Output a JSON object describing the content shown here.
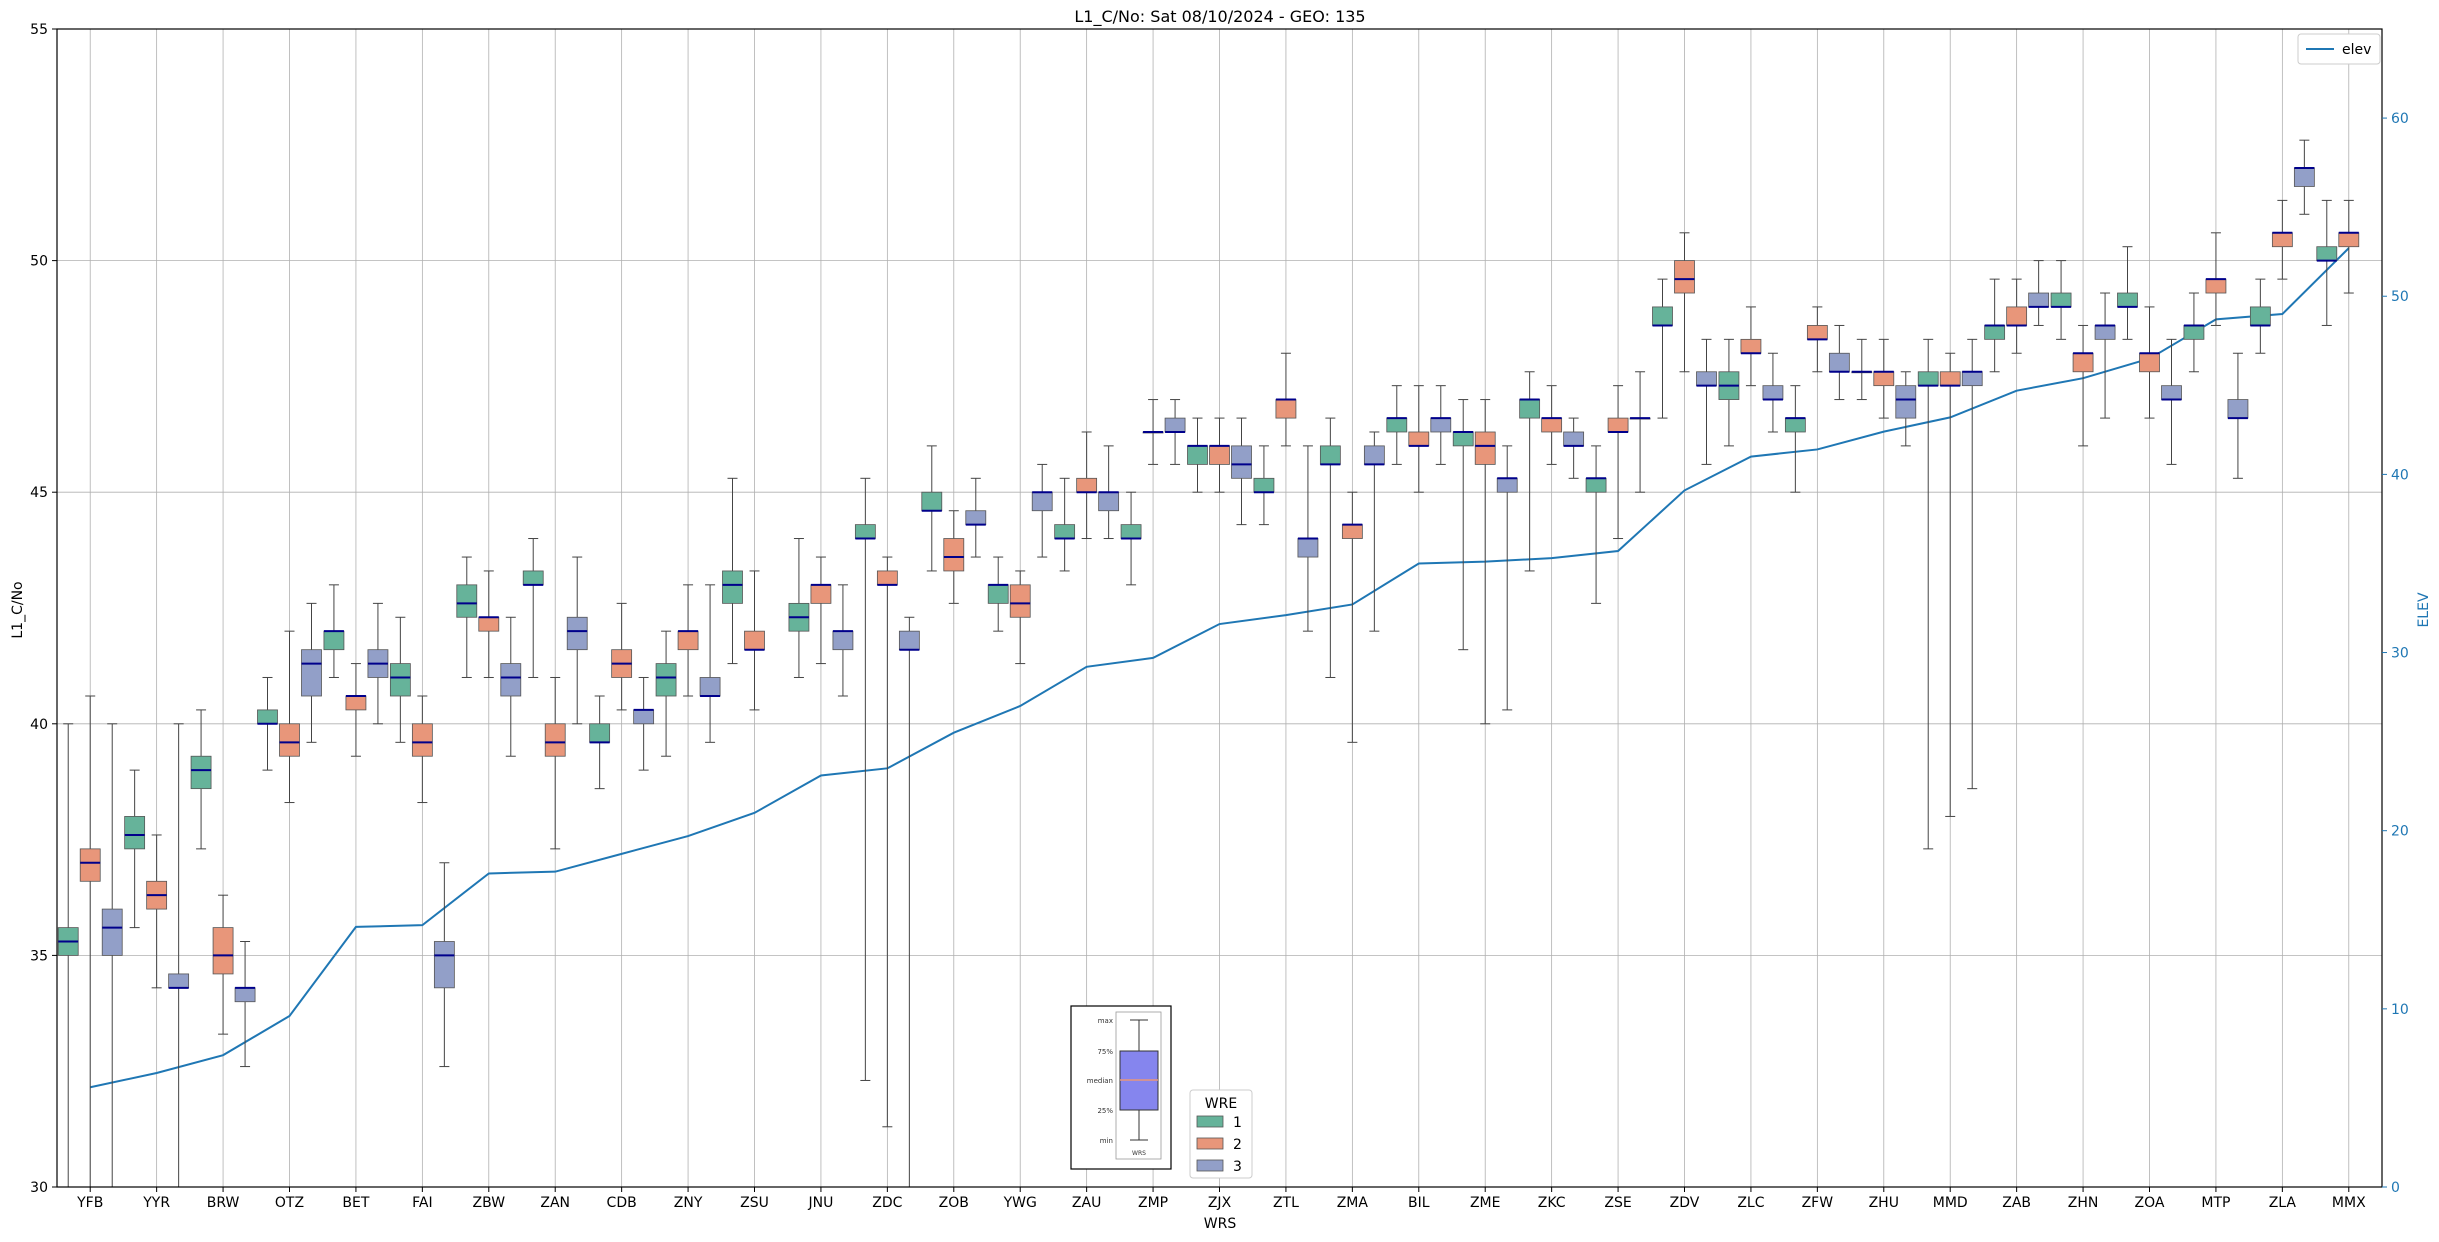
{
  "chart_data": {
    "type": "box",
    "title": "L1_C/No: Sat 08/10/2024 - GEO: 135",
    "xlabel": "WRS",
    "ylabel": "L1_C/No",
    "y2label": "ELEV",
    "ylim": [
      30,
      55
    ],
    "y2lim": [
      0,
      65
    ],
    "yticks": [
      30,
      35,
      40,
      45,
      50,
      55
    ],
    "y2ticks": [
      0,
      10,
      20,
      30,
      40,
      50,
      60
    ],
    "grid": true,
    "categories": [
      "YFB",
      "YYR",
      "BRW",
      "OTZ",
      "BET",
      "FAI",
      "ZBW",
      "ZAN",
      "CDB",
      "ZNY",
      "ZSU",
      "JNU",
      "ZDC",
      "ZOB",
      "YWG",
      "ZAU",
      "ZMP",
      "ZJX",
      "ZTL",
      "ZMA",
      "BIL",
      "ZME",
      "ZKC",
      "ZSE",
      "ZDV",
      "ZLC",
      "ZFW",
      "ZHU",
      "MMD",
      "ZAB",
      "ZHN",
      "ZOA",
      "MTP",
      "ZLA",
      "MMX"
    ],
    "series_colors": {
      "1": "#66b39a",
      "2": "#e8967a",
      "3": "#929fc8"
    },
    "median_color": "#00008b",
    "elev_color": "#1f77b4",
    "legend_wre": {
      "title": "WRE",
      "entries": [
        "1",
        "2",
        "3"
      ],
      "placement": "bottom-center"
    },
    "legend_elev": {
      "label": "elev",
      "placement": "top-right"
    },
    "box_key": {
      "labels": [
        "max",
        "75%",
        "median",
        "25%",
        "min"
      ],
      "xlabel": "WRS"
    },
    "elev": [
      5.6,
      6.4,
      7.4,
      9.6,
      14.6,
      14.7,
      17.6,
      17.7,
      18.7,
      19.7,
      21.0,
      23.1,
      23.5,
      25.5,
      27.0,
      29.2,
      29.7,
      31.6,
      32.1,
      32.7,
      35.0,
      35.1,
      35.3,
      35.7,
      39.1,
      41.0,
      41.4,
      42.4,
      43.2,
      44.7,
      45.4,
      46.5,
      48.7,
      49.0,
      52.7
    ],
    "boxes": [
      {
        "wrs": "YFB",
        "wre": 1,
        "min": 30,
        "q1": 35.0,
        "med": 35.3,
        "q3": 35.6,
        "max": 40.0
      },
      {
        "wrs": "YFB",
        "wre": 2,
        "min": 30,
        "q1": 36.6,
        "med": 37.0,
        "q3": 37.3,
        "max": 40.6
      },
      {
        "wrs": "YFB",
        "wre": 3,
        "min": 30,
        "q1": 35.0,
        "med": 35.6,
        "q3": 36.0,
        "max": 40.0
      },
      {
        "wrs": "YYR",
        "wre": 1,
        "min": 35.6,
        "q1": 37.3,
        "med": 37.6,
        "q3": 38.0,
        "max": 39.0
      },
      {
        "wrs": "YYR",
        "wre": 2,
        "min": 34.3,
        "q1": 36.0,
        "med": 36.3,
        "q3": 36.6,
        "max": 37.6
      },
      {
        "wrs": "YYR",
        "wre": 3,
        "min": 30,
        "q1": 34.3,
        "med": 34.3,
        "q3": 34.6,
        "max": 40.0
      },
      {
        "wrs": "BRW",
        "wre": 1,
        "min": 37.3,
        "q1": 38.6,
        "med": 39.0,
        "q3": 39.3,
        "max": 40.3
      },
      {
        "wrs": "BRW",
        "wre": 2,
        "min": 33.3,
        "q1": 34.6,
        "med": 35.0,
        "q3": 35.6,
        "max": 36.3
      },
      {
        "wrs": "BRW",
        "wre": 3,
        "min": 32.6,
        "q1": 34.0,
        "med": 34.3,
        "q3": 34.3,
        "max": 35.3
      },
      {
        "wrs": "OTZ",
        "wre": 1,
        "min": 39.0,
        "q1": 40.0,
        "med": 40.0,
        "q3": 40.3,
        "max": 41.0
      },
      {
        "wrs": "OTZ",
        "wre": 2,
        "min": 38.3,
        "q1": 39.3,
        "med": 39.6,
        "q3": 40.0,
        "max": 42.0
      },
      {
        "wrs": "OTZ",
        "wre": 3,
        "min": 39.6,
        "q1": 40.6,
        "med": 41.3,
        "q3": 41.6,
        "max": 42.6
      },
      {
        "wrs": "BET",
        "wre": 1,
        "min": 41.0,
        "q1": 41.6,
        "med": 42.0,
        "q3": 42.0,
        "max": 43.0
      },
      {
        "wrs": "BET",
        "wre": 2,
        "min": 39.3,
        "q1": 40.3,
        "med": 40.6,
        "q3": 40.6,
        "max": 41.3
      },
      {
        "wrs": "BET",
        "wre": 3,
        "min": 40.0,
        "q1": 41.0,
        "med": 41.3,
        "q3": 41.6,
        "max": 42.6
      },
      {
        "wrs": "FAI",
        "wre": 1,
        "min": 39.6,
        "q1": 40.6,
        "med": 41.0,
        "q3": 41.3,
        "max": 42.3
      },
      {
        "wrs": "FAI",
        "wre": 2,
        "min": 38.3,
        "q1": 39.3,
        "med": 39.6,
        "q3": 40.0,
        "max": 40.6
      },
      {
        "wrs": "FAI",
        "wre": 3,
        "min": 32.6,
        "q1": 34.3,
        "med": 35.0,
        "q3": 35.3,
        "max": 37.0
      },
      {
        "wrs": "ZBW",
        "wre": 1,
        "min": 41.0,
        "q1": 42.3,
        "med": 42.6,
        "q3": 43.0,
        "max": 43.6
      },
      {
        "wrs": "ZBW",
        "wre": 2,
        "min": 41.0,
        "q1": 42.0,
        "med": 42.3,
        "q3": 42.3,
        "max": 43.3
      },
      {
        "wrs": "ZBW",
        "wre": 3,
        "min": 39.3,
        "q1": 40.6,
        "med": 41.0,
        "q3": 41.3,
        "max": 42.3
      },
      {
        "wrs": "ZAN",
        "wre": 1,
        "min": 41.0,
        "q1": 43.0,
        "med": 43.0,
        "q3": 43.3,
        "max": 44.0
      },
      {
        "wrs": "ZAN",
        "wre": 2,
        "min": 37.3,
        "q1": 39.3,
        "med": 39.6,
        "q3": 40.0,
        "max": 41.0
      },
      {
        "wrs": "ZAN",
        "wre": 3,
        "min": 40.0,
        "q1": 41.6,
        "med": 42.0,
        "q3": 42.3,
        "max": 43.6
      },
      {
        "wrs": "CDB",
        "wre": 1,
        "min": 38.6,
        "q1": 39.6,
        "med": 39.6,
        "q3": 40.0,
        "max": 40.6
      },
      {
        "wrs": "CDB",
        "wre": 2,
        "min": 40.3,
        "q1": 41.0,
        "med": 41.3,
        "q3": 41.6,
        "max": 42.6
      },
      {
        "wrs": "CDB",
        "wre": 3,
        "min": 39.0,
        "q1": 40.0,
        "med": 40.3,
        "q3": 40.3,
        "max": 41.0
      },
      {
        "wrs": "ZNY",
        "wre": 1,
        "min": 39.3,
        "q1": 40.6,
        "med": 41.0,
        "q3": 41.3,
        "max": 42.0
      },
      {
        "wrs": "ZNY",
        "wre": 2,
        "min": 40.6,
        "q1": 41.6,
        "med": 42.0,
        "q3": 42.0,
        "max": 43.0
      },
      {
        "wrs": "ZNY",
        "wre": 3,
        "min": 39.6,
        "q1": 40.6,
        "med": 40.6,
        "q3": 41.0,
        "max": 43.0
      },
      {
        "wrs": "ZSU",
        "wre": 1,
        "min": 41.3,
        "q1": 42.6,
        "med": 43.0,
        "q3": 43.3,
        "max": 45.3
      },
      {
        "wrs": "ZSU",
        "wre": 2,
        "min": 40.3,
        "q1": 41.6,
        "med": 41.6,
        "q3": 42.0,
        "max": 43.3
      },
      {
        "wrs": "JNU",
        "wre": 1,
        "min": 41.0,
        "q1": 42.0,
        "med": 42.3,
        "q3": 42.6,
        "max": 44.0
      },
      {
        "wrs": "JNU",
        "wre": 2,
        "min": 41.3,
        "q1": 42.6,
        "med": 43.0,
        "q3": 43.0,
        "max": 43.6
      },
      {
        "wrs": "JNU",
        "wre": 3,
        "min": 40.6,
        "q1": 41.6,
        "med": 42.0,
        "q3": 42.0,
        "max": 43.0
      },
      {
        "wrs": "ZDC",
        "wre": 1,
        "min": 32.3,
        "q1": 44.0,
        "med": 44.0,
        "q3": 44.3,
        "max": 45.3
      },
      {
        "wrs": "ZDC",
        "wre": 2,
        "min": 31.3,
        "q1": 43.0,
        "med": 43.0,
        "q3": 43.3,
        "max": 43.6
      },
      {
        "wrs": "ZDC",
        "wre": 3,
        "min": 30,
        "q1": 41.6,
        "med": 41.6,
        "q3": 42.0,
        "max": 42.3
      },
      {
        "wrs": "ZOB",
        "wre": 1,
        "min": 43.3,
        "q1": 44.6,
        "med": 44.6,
        "q3": 45.0,
        "max": 46.0
      },
      {
        "wrs": "ZOB",
        "wre": 2,
        "min": 42.6,
        "q1": 43.3,
        "med": 43.6,
        "q3": 44.0,
        "max": 44.6
      },
      {
        "wrs": "ZOB",
        "wre": 3,
        "min": 43.6,
        "q1": 44.3,
        "med": 44.3,
        "q3": 44.6,
        "max": 45.3
      },
      {
        "wrs": "YWG",
        "wre": 1,
        "min": 42.0,
        "q1": 42.6,
        "med": 43.0,
        "q3": 43.0,
        "max": 43.6
      },
      {
        "wrs": "YWG",
        "wre": 2,
        "min": 41.3,
        "q1": 42.3,
        "med": 42.6,
        "q3": 43.0,
        "max": 43.3
      },
      {
        "wrs": "YWG",
        "wre": 3,
        "min": 43.6,
        "q1": 44.6,
        "med": 45.0,
        "q3": 45.0,
        "max": 45.6
      },
      {
        "wrs": "ZAU",
        "wre": 1,
        "min": 43.3,
        "q1": 44.0,
        "med": 44.0,
        "q3": 44.3,
        "max": 45.3
      },
      {
        "wrs": "ZAU",
        "wre": 2,
        "min": 44.0,
        "q1": 45.0,
        "med": 45.0,
        "q3": 45.3,
        "max": 46.3
      },
      {
        "wrs": "ZAU",
        "wre": 3,
        "min": 44.0,
        "q1": 44.6,
        "med": 45.0,
        "q3": 45.0,
        "max": 46.0
      },
      {
        "wrs": "ZMP",
        "wre": 1,
        "min": 43.0,
        "q1": 44.0,
        "med": 44.0,
        "q3": 44.3,
        "max": 45.0
      },
      {
        "wrs": "ZMP",
        "wre": 2,
        "min": 45.6,
        "q1": 46.3,
        "med": 46.3,
        "q3": 46.3,
        "max": 47.0
      },
      {
        "wrs": "ZMP",
        "wre": 3,
        "min": 45.6,
        "q1": 46.3,
        "med": 46.3,
        "q3": 46.6,
        "max": 47.0
      },
      {
        "wrs": "ZJX",
        "wre": 1,
        "min": 45.0,
        "q1": 45.6,
        "med": 46.0,
        "q3": 46.0,
        "max": 46.6
      },
      {
        "wrs": "ZJX",
        "wre": 2,
        "min": 45.0,
        "q1": 45.6,
        "med": 46.0,
        "q3": 46.0,
        "max": 46.6
      },
      {
        "wrs": "ZJX",
        "wre": 3,
        "min": 44.3,
        "q1": 45.3,
        "med": 45.6,
        "q3": 46.0,
        "max": 46.6
      },
      {
        "wrs": "ZTL",
        "wre": 1,
        "min": 44.3,
        "q1": 45.0,
        "med": 45.0,
        "q3": 45.3,
        "max": 46.0
      },
      {
        "wrs": "ZTL",
        "wre": 2,
        "min": 46.0,
        "q1": 46.6,
        "med": 47.0,
        "q3": 47.0,
        "max": 48.0
      },
      {
        "wrs": "ZTL",
        "wre": 3,
        "min": 42.0,
        "q1": 43.6,
        "med": 44.0,
        "q3": 44.0,
        "max": 46.0
      },
      {
        "wrs": "ZMA",
        "wre": 1,
        "min": 41.0,
        "q1": 45.6,
        "med": 45.6,
        "q3": 46.0,
        "max": 46.6
      },
      {
        "wrs": "ZMA",
        "wre": 2,
        "min": 39.6,
        "q1": 44.0,
        "med": 44.3,
        "q3": 44.3,
        "max": 45.0
      },
      {
        "wrs": "ZMA",
        "wre": 3,
        "min": 42.0,
        "q1": 45.6,
        "med": 45.6,
        "q3": 46.0,
        "max": 46.3
      },
      {
        "wrs": "BIL",
        "wre": 1,
        "min": 45.6,
        "q1": 46.3,
        "med": 46.6,
        "q3": 46.6,
        "max": 47.3
      },
      {
        "wrs": "BIL",
        "wre": 2,
        "min": 45.0,
        "q1": 46.0,
        "med": 46.0,
        "q3": 46.3,
        "max": 47.3
      },
      {
        "wrs": "BIL",
        "wre": 3,
        "min": 45.6,
        "q1": 46.3,
        "med": 46.6,
        "q3": 46.6,
        "max": 47.3
      },
      {
        "wrs": "ZME",
        "wre": 1,
        "min": 41.6,
        "q1": 46.0,
        "med": 46.3,
        "q3": 46.3,
        "max": 47.0
      },
      {
        "wrs": "ZME",
        "wre": 2,
        "min": 40.0,
        "q1": 45.6,
        "med": 46.0,
        "q3": 46.3,
        "max": 47.0
      },
      {
        "wrs": "ZME",
        "wre": 3,
        "min": 40.3,
        "q1": 45.0,
        "med": 45.3,
        "q3": 45.3,
        "max": 46.0
      },
      {
        "wrs": "ZKC",
        "wre": 1,
        "min": 43.3,
        "q1": 46.6,
        "med": 47.0,
        "q3": 47.0,
        "max": 47.6
      },
      {
        "wrs": "ZKC",
        "wre": 2,
        "min": 45.6,
        "q1": 46.3,
        "med": 46.6,
        "q3": 46.6,
        "max": 47.3
      },
      {
        "wrs": "ZKC",
        "wre": 3,
        "min": 45.3,
        "q1": 46.0,
        "med": 46.0,
        "q3": 46.3,
        "max": 46.6
      },
      {
        "wrs": "ZSE",
        "wre": 1,
        "min": 42.6,
        "q1": 45.0,
        "med": 45.3,
        "q3": 45.3,
        "max": 46.0
      },
      {
        "wrs": "ZSE",
        "wre": 2,
        "min": 44.0,
        "q1": 46.3,
        "med": 46.3,
        "q3": 46.6,
        "max": 47.3
      },
      {
        "wrs": "ZSE",
        "wre": 3,
        "min": 45.0,
        "q1": 46.6,
        "med": 46.6,
        "q3": 46.6,
        "max": 47.6
      },
      {
        "wrs": "ZDV",
        "wre": 1,
        "min": 46.6,
        "q1": 48.6,
        "med": 48.6,
        "q3": 49.0,
        "max": 49.6
      },
      {
        "wrs": "ZDV",
        "wre": 2,
        "min": 47.6,
        "q1": 49.3,
        "med": 49.6,
        "q3": 50.0,
        "max": 50.6
      },
      {
        "wrs": "ZDV",
        "wre": 3,
        "min": 45.6,
        "q1": 47.3,
        "med": 47.3,
        "q3": 47.6,
        "max": 48.3
      },
      {
        "wrs": "ZLC",
        "wre": 1,
        "min": 46.0,
        "q1": 47.0,
        "med": 47.3,
        "q3": 47.6,
        "max": 48.3
      },
      {
        "wrs": "ZLC",
        "wre": 2,
        "min": 47.3,
        "q1": 48.0,
        "med": 48.0,
        "q3": 48.3,
        "max": 49.0
      },
      {
        "wrs": "ZLC",
        "wre": 3,
        "min": 46.3,
        "q1": 47.0,
        "med": 47.0,
        "q3": 47.3,
        "max": 48.0
      },
      {
        "wrs": "ZFW",
        "wre": 1,
        "min": 45.0,
        "q1": 46.3,
        "med": 46.6,
        "q3": 46.6,
        "max": 47.3
      },
      {
        "wrs": "ZFW",
        "wre": 2,
        "min": 47.6,
        "q1": 48.3,
        "med": 48.3,
        "q3": 48.6,
        "max": 49.0
      },
      {
        "wrs": "ZFW",
        "wre": 3,
        "min": 47.0,
        "q1": 47.6,
        "med": 47.6,
        "q3": 48.0,
        "max": 48.6
      },
      {
        "wrs": "ZHU",
        "wre": 1,
        "min": 47.0,
        "q1": 47.6,
        "med": 47.6,
        "q3": 47.6,
        "max": 48.3
      },
      {
        "wrs": "ZHU",
        "wre": 2,
        "min": 46.6,
        "q1": 47.3,
        "med": 47.6,
        "q3": 47.6,
        "max": 48.3
      },
      {
        "wrs": "ZHU",
        "wre": 3,
        "min": 46.0,
        "q1": 46.6,
        "med": 47.0,
        "q3": 47.3,
        "max": 47.6
      },
      {
        "wrs": "MMD",
        "wre": 1,
        "min": 37.3,
        "q1": 47.3,
        "med": 47.3,
        "q3": 47.6,
        "max": 48.3
      },
      {
        "wrs": "MMD",
        "wre": 2,
        "min": 38.0,
        "q1": 47.3,
        "med": 47.3,
        "q3": 47.6,
        "max": 48.0
      },
      {
        "wrs": "MMD",
        "wre": 3,
        "min": 38.6,
        "q1": 47.3,
        "med": 47.6,
        "q3": 47.6,
        "max": 48.3
      },
      {
        "wrs": "ZAB",
        "wre": 1,
        "min": 47.6,
        "q1": 48.3,
        "med": 48.6,
        "q3": 48.6,
        "max": 49.6
      },
      {
        "wrs": "ZAB",
        "wre": 2,
        "min": 48.0,
        "q1": 48.6,
        "med": 48.6,
        "q3": 49.0,
        "max": 49.6
      },
      {
        "wrs": "ZAB",
        "wre": 3,
        "min": 48.6,
        "q1": 49.0,
        "med": 49.0,
        "q3": 49.3,
        "max": 50.0
      },
      {
        "wrs": "ZHN",
        "wre": 1,
        "min": 48.3,
        "q1": 49.0,
        "med": 49.0,
        "q3": 49.3,
        "max": 50.0
      },
      {
        "wrs": "ZHN",
        "wre": 2,
        "min": 46.0,
        "q1": 47.6,
        "med": 48.0,
        "q3": 48.0,
        "max": 48.6
      },
      {
        "wrs": "ZHN",
        "wre": 3,
        "min": 46.6,
        "q1": 48.3,
        "med": 48.6,
        "q3": 48.6,
        "max": 49.3
      },
      {
        "wrs": "ZOA",
        "wre": 1,
        "min": 48.3,
        "q1": 49.0,
        "med": 49.0,
        "q3": 49.3,
        "max": 50.3
      },
      {
        "wrs": "ZOA",
        "wre": 2,
        "min": 46.6,
        "q1": 47.6,
        "med": 48.0,
        "q3": 48.0,
        "max": 49.0
      },
      {
        "wrs": "ZOA",
        "wre": 3,
        "min": 45.6,
        "q1": 47.0,
        "med": 47.0,
        "q3": 47.3,
        "max": 48.3
      },
      {
        "wrs": "MTP",
        "wre": 1,
        "min": 47.6,
        "q1": 48.3,
        "med": 48.6,
        "q3": 48.6,
        "max": 49.3
      },
      {
        "wrs": "MTP",
        "wre": 2,
        "min": 48.6,
        "q1": 49.3,
        "med": 49.6,
        "q3": 49.6,
        "max": 50.6
      },
      {
        "wrs": "MTP",
        "wre": 3,
        "min": 45.3,
        "q1": 46.6,
        "med": 46.6,
        "q3": 47.0,
        "max": 48.0
      },
      {
        "wrs": "ZLA",
        "wre": 1,
        "min": 48.0,
        "q1": 48.6,
        "med": 48.6,
        "q3": 49.0,
        "max": 49.6
      },
      {
        "wrs": "ZLA",
        "wre": 2,
        "min": 49.6,
        "q1": 50.3,
        "med": 50.6,
        "q3": 50.6,
        "max": 51.3
      },
      {
        "wrs": "ZLA",
        "wre": 3,
        "min": 51.0,
        "q1": 51.6,
        "med": 52.0,
        "q3": 52.0,
        "max": 52.6
      },
      {
        "wrs": "MMX",
        "wre": 1,
        "min": 48.6,
        "q1": 50.0,
        "med": 50.0,
        "q3": 50.3,
        "max": 51.3
      },
      {
        "wrs": "MMX",
        "wre": 2,
        "min": 49.3,
        "q1": 50.3,
        "med": 50.6,
        "q3": 50.6,
        "max": 51.3
      }
    ]
  }
}
